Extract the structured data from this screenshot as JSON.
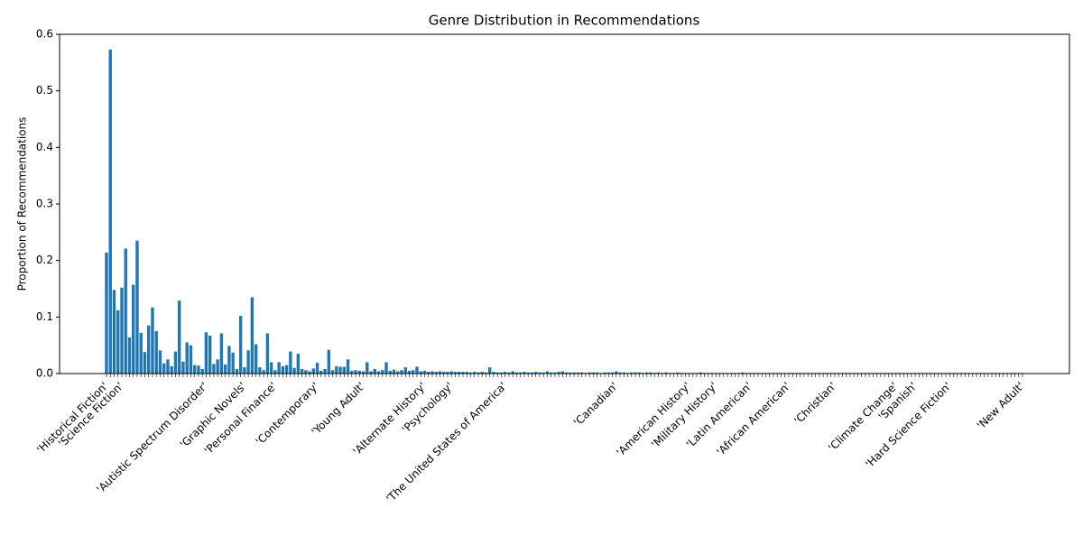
{
  "chart_data": {
    "type": "bar",
    "title": "Genre Distribution in Recommendations",
    "y_label": "Proportion of Recommendations",
    "color": "#1f77b4",
    "categories": [
      "'Historical Fiction'",
      null,
      null,
      null,
      "'Science Fiction'",
      null,
      null,
      null,
      null,
      null,
      null,
      null,
      null,
      null,
      null,
      null,
      null,
      null,
      null,
      null,
      null,
      null,
      null,
      null,
      null,
      null,
      "'Autistic Spectrum Disorder'",
      null,
      null,
      null,
      null,
      null,
      null,
      null,
      null,
      null,
      "'Graphic Novels'",
      null,
      null,
      null,
      null,
      null,
      null,
      null,
      "'Personal Finance'",
      null,
      null,
      null,
      null,
      null,
      null,
      null,
      null,
      null,
      null,
      "'Contemporary'",
      null,
      null,
      null,
      null,
      null,
      null,
      null,
      null,
      null,
      null,
      null,
      "'Young Adult'",
      null,
      null,
      null,
      null,
      null,
      null,
      null,
      null,
      null,
      null,
      null,
      null,
      null,
      null,
      null,
      "'Alternate History'",
      null,
      null,
      null,
      null,
      null,
      null,
      "'Psychology'",
      null,
      null,
      null,
      null,
      null,
      null,
      null,
      null,
      null,
      null,
      null,
      null,
      null,
      "'The United States of America'",
      null,
      null,
      null,
      null,
      null,
      null,
      null,
      null,
      null,
      null,
      null,
      null,
      null,
      null,
      null,
      null,
      null,
      null,
      null,
      null,
      null,
      null,
      null,
      null,
      null,
      null,
      null,
      null,
      "'Canadian'",
      null,
      null,
      null,
      null,
      null,
      null,
      null,
      null,
      null,
      null,
      null,
      null,
      null,
      null,
      null,
      null,
      null,
      null,
      "'American History'",
      null,
      null,
      null,
      null,
      null,
      null,
      "'Military History'",
      null,
      null,
      null,
      null,
      null,
      null,
      null,
      null,
      "'Latin American'",
      null,
      null,
      null,
      null,
      null,
      null,
      null,
      null,
      null,
      "'African American'",
      null,
      null,
      null,
      null,
      null,
      null,
      null,
      null,
      null,
      null,
      null,
      "'Christian'",
      null,
      null,
      null,
      null,
      null,
      null,
      null,
      null,
      null,
      null,
      null,
      null,
      null,
      null,
      null,
      "'Climate Change'",
      null,
      null,
      null,
      null,
      "'Spanish'",
      null,
      null,
      null,
      null,
      null,
      null,
      null,
      null,
      "'Hard Science Fiction'",
      null,
      null,
      null,
      null,
      null,
      null,
      null,
      null,
      null,
      null,
      null,
      null,
      null,
      null,
      null,
      null,
      null,
      null,
      "'New Adult'"
    ],
    "values": [
      0.214,
      0.573,
      0.148,
      0.112,
      0.152,
      0.221,
      0.064,
      0.157,
      0.235,
      0.072,
      0.038,
      0.085,
      0.117,
      0.075,
      0.041,
      0.018,
      0.025,
      0.013,
      0.039,
      0.129,
      0.021,
      0.055,
      0.05,
      0.015,
      0.014,
      0.008,
      0.073,
      0.067,
      0.017,
      0.025,
      0.071,
      0.016,
      0.049,
      0.037,
      0.008,
      0.102,
      0.011,
      0.041,
      0.135,
      0.052,
      0.011,
      0.006,
      0.071,
      0.02,
      0.006,
      0.02,
      0.013,
      0.015,
      0.039,
      0.01,
      0.035,
      0.008,
      0.006,
      0.004,
      0.009,
      0.019,
      0.005,
      0.008,
      0.042,
      0.006,
      0.013,
      0.012,
      0.012,
      0.025,
      0.005,
      0.006,
      0.005,
      0.004,
      0.02,
      0.004,
      0.008,
      0.004,
      0.006,
      0.02,
      0.005,
      0.007,
      0.004,
      0.006,
      0.011,
      0.005,
      0.006,
      0.012,
      0.004,
      0.005,
      0.003,
      0.004,
      0.003,
      0.004,
      0.003,
      0.003,
      0.004,
      0.003,
      0.003,
      0.003,
      0.003,
      0.002,
      0.003,
      0.002,
      0.003,
      0.002,
      0.011,
      0.003,
      0.002,
      0.002,
      0.003,
      0.002,
      0.004,
      0.002,
      0.002,
      0.003,
      0.002,
      0.002,
      0.003,
      0.002,
      0.002,
      0.004,
      0.002,
      0.002,
      0.003,
      0.004,
      0.002,
      0.002,
      0.002,
      0.002,
      0.002,
      0.001,
      0.002,
      0.002,
      0.002,
      0.001,
      0.002,
      0.002,
      0.002,
      0.004,
      0.002,
      0.002,
      0.001,
      0.002,
      0.002,
      0.002,
      0.001,
      0.002,
      0.002,
      0.001,
      0.002,
      0.001,
      0.002,
      0.001,
      0.001,
      0.002,
      0.001,
      0.001,
      0.001,
      0.001,
      0.001,
      0.002,
      0.001,
      0.001,
      0.001,
      0.001,
      0.001,
      0.001,
      0.001,
      0.001,
      0.001,
      0.001,
      0.002,
      0.001,
      0.001,
      0.001,
      0.001,
      0.001,
      0.001,
      0.001,
      0.001,
      0.001,
      0.001,
      0.001,
      0.001,
      0.001,
      0.001,
      0.001,
      0.001,
      0.001,
      0.001,
      0.001,
      0.001,
      0.001,
      0.001,
      0.001,
      0.001,
      0.001,
      0.001,
      0.001,
      0.001,
      0.001,
      0.001,
      0.001,
      0.001,
      0.001,
      0.001,
      0.001,
      0.001,
      0.001,
      0.001,
      0.001,
      0.001,
      0.001,
      0.001,
      0.001,
      0.001,
      0.001,
      0.001,
      0.001,
      0.001,
      0.001,
      0.001,
      0.001,
      0.001,
      0.001,
      0.001,
      0.001,
      0.001,
      0.001,
      0.001,
      0.001,
      0.001,
      0.001,
      0.001,
      0.001,
      0.001,
      0.001,
      0.001,
      0.001,
      0.001,
      0.001,
      0.001,
      0.001,
      0.001,
      0.001
    ],
    "ylim": [
      0,
      0.6
    ],
    "yticks": [
      {
        "value": 0,
        "label": "0.0"
      },
      0.1,
      0.2,
      0.3,
      0.4,
      0.5,
      0.6
    ]
  }
}
